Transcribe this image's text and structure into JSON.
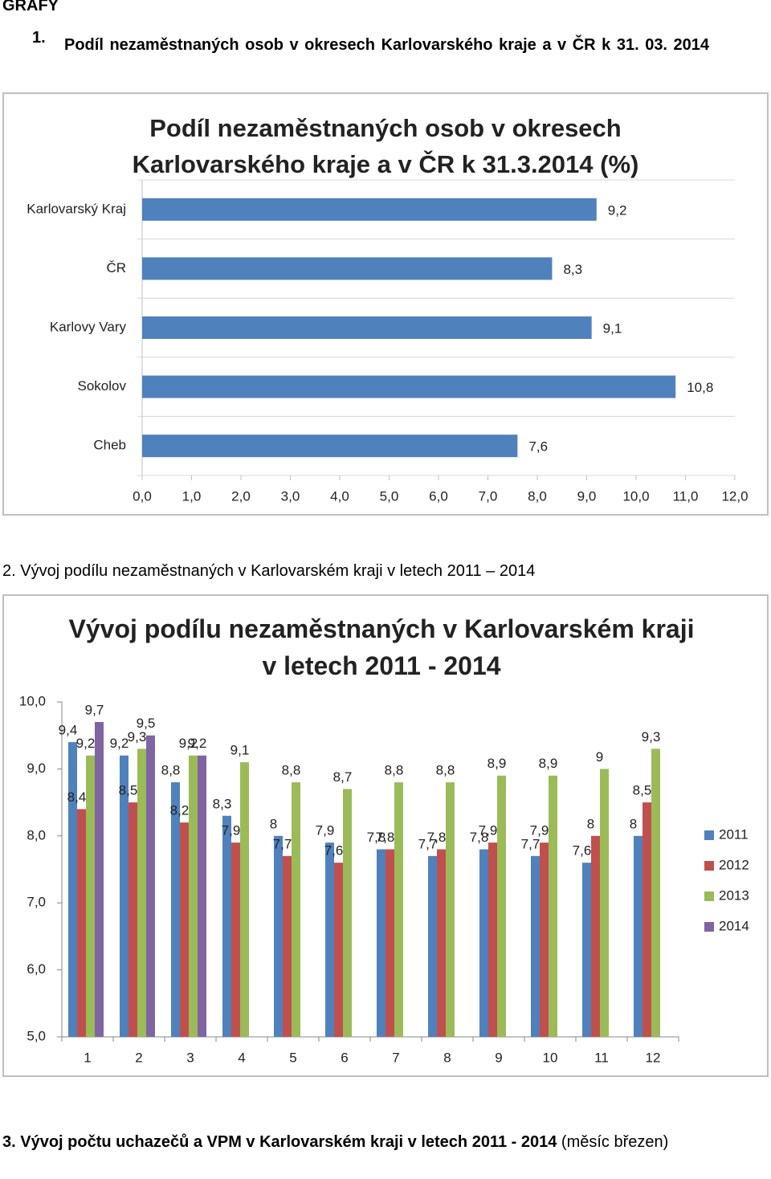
{
  "document": {
    "header": "GRAFY",
    "sections": [
      {
        "number": "1.",
        "heading": "Podíl nezaměstnaných osob v okresech Karlovarského kraje a v ČR k 31. 03. 2014"
      },
      {
        "heading": "2. Vývoj podílu nezaměstnaných v Karlovarském kraji v letech 2011 – 2014"
      },
      {
        "heading": "3. Vývoj počtu uchazečů a VPM v Karlovarském kraji v letech 2011 - 2014",
        "note": "(měsíc březen)"
      }
    ]
  },
  "chart_data": [
    {
      "type": "barh",
      "title": "Podíl nezaměstnaných osob v okresech Karlovarského kraje a v ČR k 31.3.2014 (%)",
      "categories": [
        "Karlovarský Kraj",
        "ČR",
        "Karlovy Vary",
        "Sokolov",
        "Cheb"
      ],
      "values": [
        9.2,
        8.3,
        9.1,
        10.8,
        7.6
      ],
      "value_labels": [
        "9,2",
        "8,3",
        "9,1",
        "10,8",
        "7,6"
      ],
      "color": "#4f81bd",
      "xlim": [
        0,
        12
      ],
      "xticks": [
        {
          "value": 0,
          "label": "0,0"
        },
        {
          "value": 1,
          "label": "1,0"
        },
        {
          "value": 2,
          "label": "2,0"
        },
        {
          "value": 3,
          "label": "3,0"
        },
        {
          "value": 4,
          "label": "4,0"
        },
        {
          "value": 5,
          "label": "5,0"
        },
        {
          "value": 6,
          "label": "6,0"
        },
        {
          "value": 7,
          "label": "7,0"
        },
        {
          "value": 8,
          "label": "8,0"
        },
        {
          "value": 9,
          "label": "9,0"
        },
        {
          "value": 10,
          "label": "10,0"
        },
        {
          "value": 11,
          "label": "11,0"
        },
        {
          "value": 12,
          "label": "12,0"
        }
      ]
    },
    {
      "type": "bar",
      "title": "Vývoj podílu nezaměstnaných v Karlovarském kraji v letech 2011 - 2014",
      "categories": [
        "1",
        "2",
        "3",
        "4",
        "5",
        "6",
        "7",
        "8",
        "9",
        "10",
        "11",
        "12"
      ],
      "series": [
        {
          "name": "2011",
          "color": "#4f81bd",
          "values": [
            9.4,
            9.2,
            8.8,
            8.3,
            8,
            7.9,
            7.8,
            7.7,
            7.8,
            7.7,
            7.6,
            8
          ],
          "value_labels": [
            "9,4",
            "9,2",
            "8,8",
            "8,3",
            "8",
            "7,9",
            "7,8",
            "7,7",
            "7,8",
            "7,7",
            "7,6",
            "8"
          ]
        },
        {
          "name": "2012",
          "color": "#c0504d",
          "values": [
            8.4,
            8.5,
            8.2,
            7.9,
            7.7,
            7.6,
            7.8,
            7.8,
            7.9,
            7.9,
            8,
            8.5
          ],
          "value_labels": [
            "8,4",
            "8,5",
            "8,2",
            "7,9",
            "7,7",
            "7,6",
            "7,8",
            "7,8",
            "7,9",
            "7,9",
            "8",
            "8,5"
          ]
        },
        {
          "name": "2013",
          "color": "#9bbb59",
          "values": [
            9.2,
            9.3,
            9.2,
            9.1,
            8.8,
            8.7,
            8.8,
            8.8,
            8.9,
            8.9,
            9,
            9.3
          ],
          "value_labels": [
            "9,2",
            "9,3",
            "9,2",
            "9,1",
            "8,8",
            "8,7",
            "8,8",
            "8,8",
            "8,9",
            "8,9",
            "9",
            "9,3"
          ]
        },
        {
          "name": "2014",
          "color": "#8064a2",
          "values": [
            9.7,
            9.5,
            9.2,
            null,
            null,
            null,
            null,
            null,
            null,
            null,
            null,
            null
          ],
          "value_labels": [
            "9,7",
            "9,5",
            "9,2",
            null,
            null,
            null,
            null,
            null,
            null,
            null,
            null,
            null
          ]
        }
      ],
      "ylim": [
        5,
        10
      ],
      "yticks": [
        {
          "value": 5,
          "label": "5,0"
        },
        {
          "value": 6,
          "label": "6,0"
        },
        {
          "value": 7,
          "label": "7,0"
        },
        {
          "value": 8,
          "label": "8,0"
        },
        {
          "value": 9,
          "label": "9,0"
        },
        {
          "value": 10,
          "label": "10,0"
        }
      ],
      "legend": "right"
    }
  ]
}
